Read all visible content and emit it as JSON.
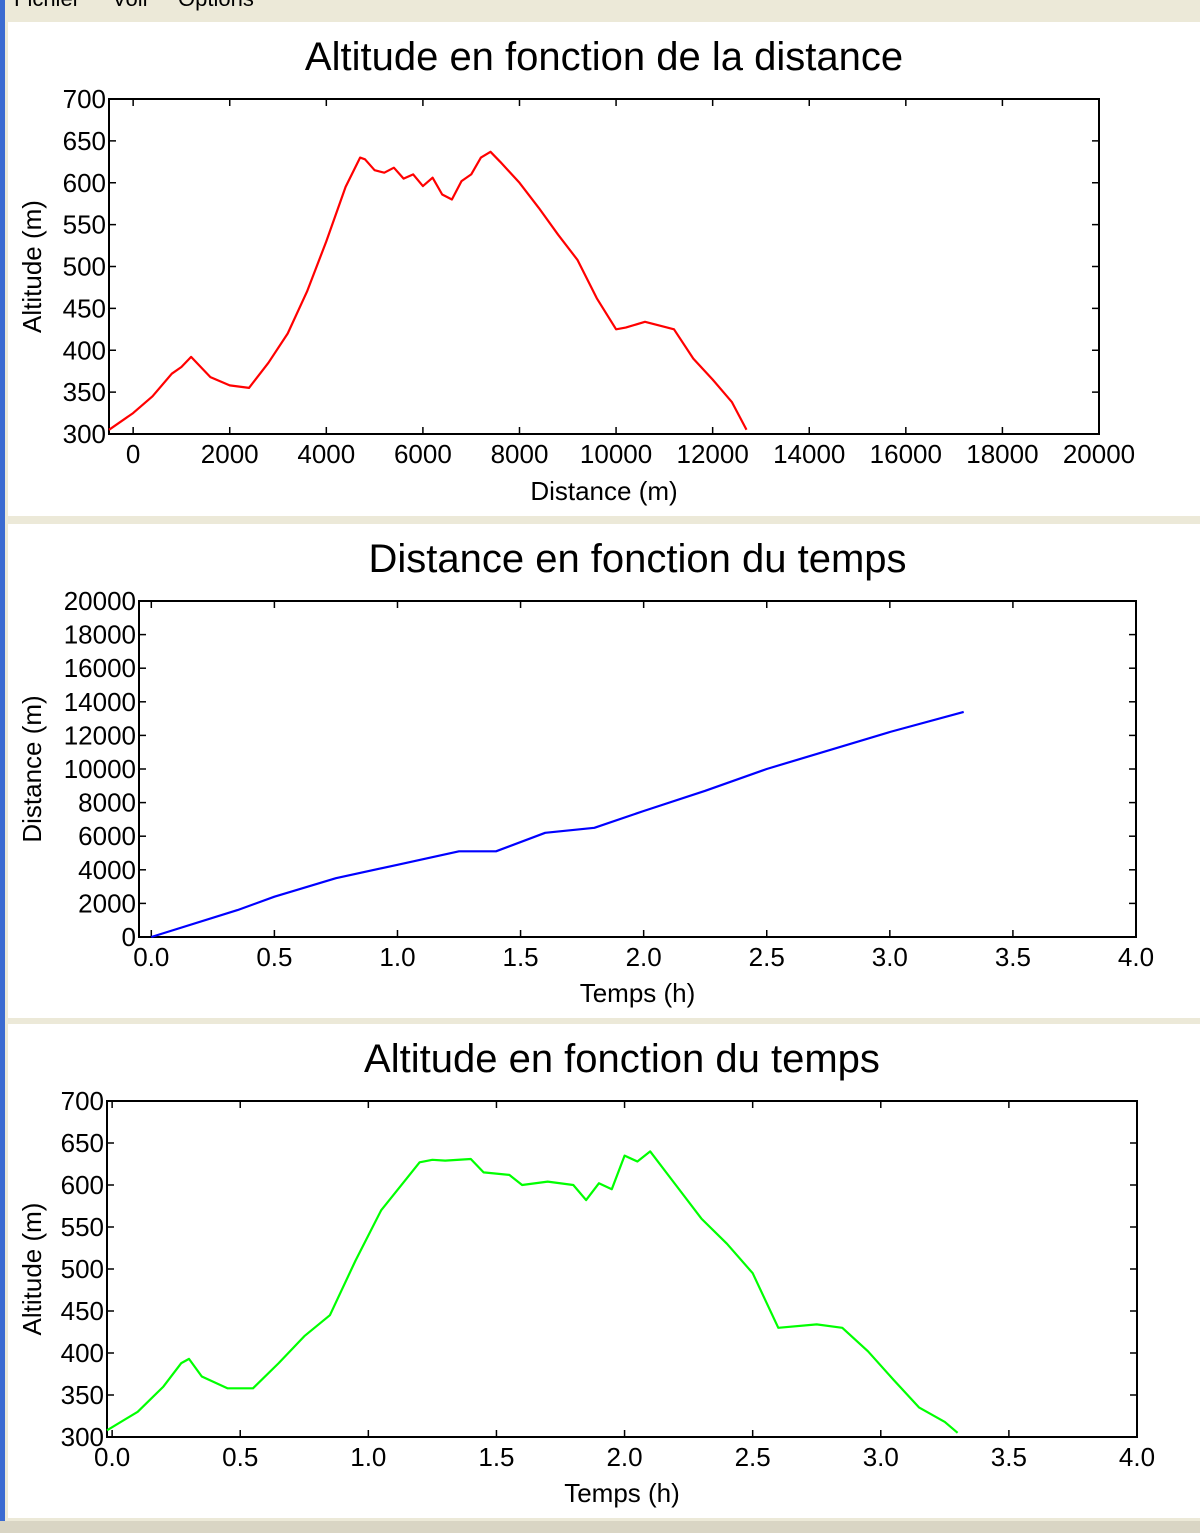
{
  "menu": {
    "items": [
      "Fichier",
      "Voir",
      "Options"
    ]
  },
  "chart_data": [
    {
      "type": "line",
      "title": "Altitude en fonction de la distance",
      "xlabel": "Distance (m)",
      "ylabel": "Altitude (m)",
      "xlim": [
        -500,
        20000
      ],
      "ylim": [
        300,
        700
      ],
      "xticks": [
        0,
        2000,
        4000,
        6000,
        8000,
        10000,
        12000,
        14000,
        16000,
        18000,
        20000
      ],
      "yticks": [
        300,
        350,
        400,
        450,
        500,
        550,
        600,
        650,
        700
      ],
      "tick_format": "int",
      "grid": false,
      "color": "#ff0000",
      "series": [
        {
          "x": [
            -500,
            0,
            400,
            800,
            1000,
            1200,
            1600,
            2000,
            2400,
            2800,
            3200,
            3600,
            4000,
            4400,
            4700,
            4800,
            5000,
            5200,
            5400,
            5600,
            5800,
            6000,
            6200,
            6400,
            6600,
            6800,
            7000,
            7200,
            7400,
            7600,
            8000,
            8400,
            8800,
            9200,
            9600,
            10000,
            10200,
            10600,
            11000,
            11200,
            11600,
            12000,
            12400,
            12700
          ],
          "y": [
            305,
            325,
            345,
            372,
            380,
            392,
            368,
            358,
            355,
            385,
            420,
            470,
            530,
            595,
            630,
            628,
            615,
            612,
            618,
            605,
            610,
            596,
            606,
            586,
            580,
            602,
            610,
            630,
            637,
            625,
            600,
            570,
            538,
            508,
            462,
            425,
            427,
            434,
            428,
            425,
            390,
            365,
            338,
            305
          ]
        }
      ]
    },
    {
      "type": "line",
      "title": "Distance en fonction du temps",
      "xlabel": "Temps (h)",
      "ylabel": "Distance (m)",
      "xlim": [
        -0.05,
        4.0
      ],
      "ylim": [
        0,
        20000
      ],
      "xticks": [
        0.0,
        0.5,
        1.0,
        1.5,
        2.0,
        2.5,
        3.0,
        3.5,
        4.0
      ],
      "yticks": [
        0,
        2000,
        4000,
        6000,
        8000,
        10000,
        12000,
        14000,
        16000,
        18000,
        20000
      ],
      "tick_format": "fixed1x",
      "grid": false,
      "color": "#0000ff",
      "series": [
        {
          "x": [
            0.0,
            0.35,
            0.5,
            0.75,
            1.0,
            1.25,
            1.4,
            1.6,
            1.8,
            2.0,
            2.25,
            2.5,
            3.0,
            3.3
          ],
          "y": [
            0,
            1600,
            2400,
            3500,
            4300,
            5100,
            5100,
            6200,
            6500,
            7500,
            8700,
            10000,
            12200,
            13400
          ]
        }
      ]
    },
    {
      "type": "line",
      "title": "Altitude en fonction du temps",
      "xlabel": "Temps (h)",
      "ylabel": "Altitude (m)",
      "xlim": [
        -0.02,
        4.0
      ],
      "ylim": [
        300,
        700
      ],
      "xticks": [
        0.0,
        0.5,
        1.0,
        1.5,
        2.0,
        2.5,
        3.0,
        3.5,
        4.0
      ],
      "yticks": [
        300,
        350,
        400,
        450,
        500,
        550,
        600,
        650,
        700
      ],
      "tick_format": "int",
      "grid": false,
      "color": "#00ff00",
      "series": [
        {
          "x": [
            -0.02,
            0.1,
            0.2,
            0.27,
            0.3,
            0.35,
            0.45,
            0.55,
            0.65,
            0.75,
            0.85,
            0.95,
            1.05,
            1.15,
            1.2,
            1.25,
            1.3,
            1.4,
            1.45,
            1.55,
            1.6,
            1.7,
            1.8,
            1.85,
            1.9,
            1.95,
            2.0,
            2.05,
            2.1,
            2.2,
            2.3,
            2.4,
            2.5,
            2.6,
            2.75,
            2.85,
            2.95,
            3.05,
            3.15,
            3.25,
            3.3
          ],
          "y": [
            308,
            330,
            360,
            388,
            393,
            372,
            358,
            358,
            388,
            420,
            445,
            510,
            570,
            608,
            627,
            630,
            629,
            631,
            615,
            612,
            600,
            604,
            600,
            582,
            602,
            595,
            635,
            628,
            640,
            600,
            560,
            530,
            495,
            430,
            434,
            430,
            402,
            368,
            335,
            318,
            305
          ]
        }
      ]
    }
  ]
}
